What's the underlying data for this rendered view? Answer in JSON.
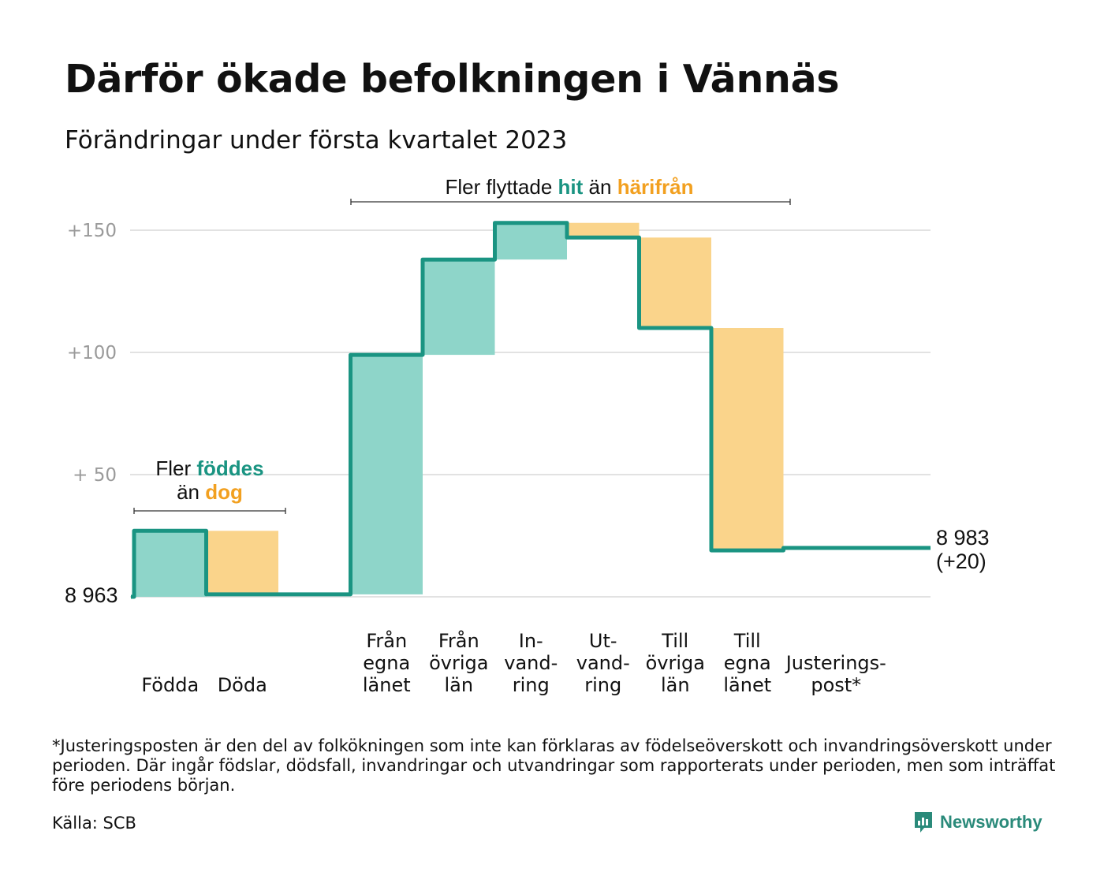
{
  "title": "Därför ökade befolkningen i Vännäs",
  "subtitle": "Förändringar under första kvartalet 2023",
  "colors": {
    "increase_fill": "#8ed5c9",
    "decrease_fill": "#fad48b",
    "line": "#1a9482",
    "accent_green": "#1a9482",
    "accent_orange": "#f2a020",
    "grid": "#e2e2e2",
    "tick_text": "#9a9a9a",
    "brand": "#2a8a7a"
  },
  "annotations": {
    "births": {
      "line1_pre": "Fler ",
      "line1_hl": "föddes",
      "line2_pre": "än ",
      "line2_hl": "dog"
    },
    "migration": {
      "pre": "Fler flyttade ",
      "hl1": "hit",
      "mid": " än ",
      "hl2": "härifrån"
    }
  },
  "chart_data": {
    "type": "waterfall",
    "title": "Därför ökade befolkningen i Vännäs",
    "subtitle": "Förändringar under första kvartalet 2023",
    "start_value": 8963,
    "start_label": "8 963",
    "end_value": 8983,
    "end_label": "8 983",
    "end_change_label": "(+20)",
    "y_ticks": [
      {
        "value": 50,
        "label": "+ 50"
      },
      {
        "value": 100,
        "label": "+100"
      },
      {
        "value": 150,
        "label": "+150"
      }
    ],
    "ylim": [
      0,
      160
    ],
    "grid": true,
    "steps": [
      {
        "lines": [
          "Födda"
        ],
        "change": 27,
        "from": 0,
        "to": 27,
        "kind": "increase"
      },
      {
        "lines": [
          "Döda"
        ],
        "change": -26,
        "from": 27,
        "to": 1,
        "kind": "decrease"
      },
      {
        "lines": [],
        "change": 0,
        "from": 1,
        "to": 1,
        "kind": "gap"
      },
      {
        "lines": [
          "Från",
          "egna",
          "länet"
        ],
        "change": 98,
        "from": 1,
        "to": 99,
        "kind": "increase"
      },
      {
        "lines": [
          "Från",
          "övriga",
          "län"
        ],
        "change": 39,
        "from": 99,
        "to": 138,
        "kind": "increase"
      },
      {
        "lines": [
          "In-",
          "vand-",
          "ring"
        ],
        "change": 15,
        "from": 138,
        "to": 153,
        "kind": "increase"
      },
      {
        "lines": [
          "Ut-",
          "vand-",
          "ring"
        ],
        "change": -6,
        "from": 153,
        "to": 147,
        "kind": "decrease"
      },
      {
        "lines": [
          "Till",
          "övriga",
          "län"
        ],
        "change": -37,
        "from": 147,
        "to": 110,
        "kind": "decrease"
      },
      {
        "lines": [
          "Till",
          "egna",
          "länet"
        ],
        "change": -91,
        "from": 110,
        "to": 19,
        "kind": "decrease"
      },
      {
        "lines": [
          "Justerings-",
          "post*"
        ],
        "change": 1,
        "from": 19,
        "to": 20,
        "kind": "adjustment"
      }
    ]
  },
  "footnote": "*Justeringsposten är den del av folkökningen som inte kan förklaras av födelseöverskott och invandringsöverskott under perioden. Där ingår födslar, dödsfall, invandringar och utvandringar som rapporterats under perioden, men som inträffat före periodens början.",
  "source": "Källa: SCB",
  "brand": {
    "name": "Newsworthy",
    "icon": "newsworthy-logo-icon"
  }
}
